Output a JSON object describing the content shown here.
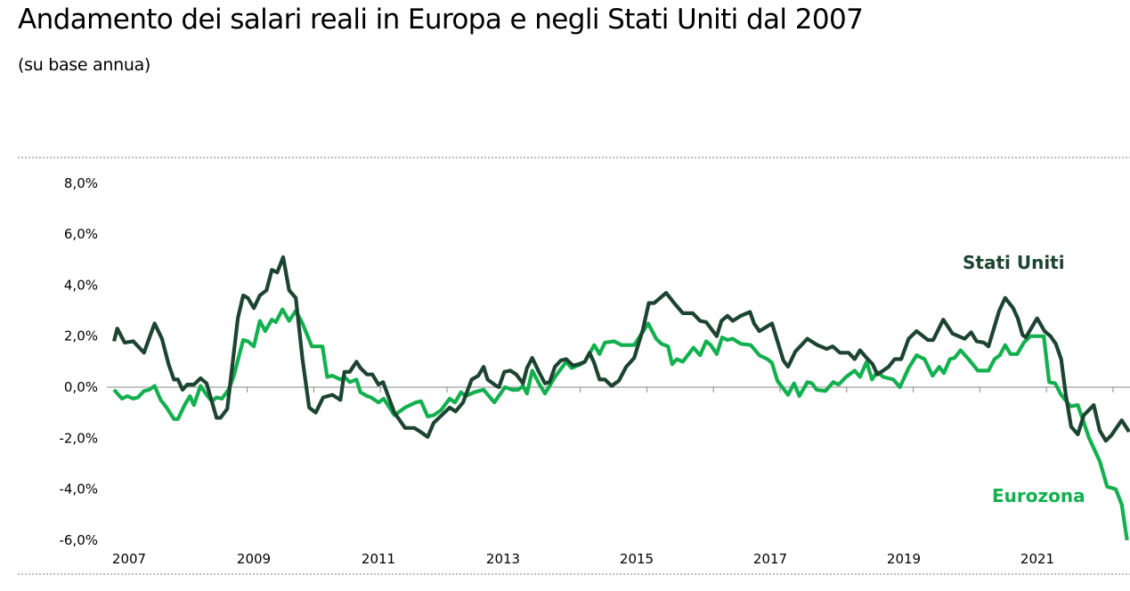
{
  "title": "Andamento dei salari reali in Europa e negli Stati Uniti dal 2007",
  "subtitle": "(su base annua)",
  "chart_data": {
    "type": "line",
    "title": "Andamento dei salari reali in Europa e negli Stati Uniti dal 2007",
    "subtitle": "(su base annua)",
    "xlabel": "",
    "ylabel": "",
    "xlim": [
      2007.0,
      2022.24
    ],
    "ylim": [
      -6,
      8
    ],
    "y_ticks": [
      "8,0%",
      "6,0%",
      "4,0%",
      "2,0%",
      "0,0%",
      "-2,0%",
      "-4,0%",
      "-6,0%"
    ],
    "y_tick_values": [
      8,
      6,
      4,
      2,
      0,
      -2,
      -4,
      -6
    ],
    "x_ticks": [
      "2007",
      "2009",
      "2011",
      "2013",
      "2015",
      "2017",
      "2019",
      "2021"
    ],
    "grid": false,
    "legend": "inline labels at line ends",
    "series": [
      {
        "name": "Stati Uniti",
        "color": "#1d4431",
        "x": [
          2007.0,
          2007.05,
          2007.16,
          2007.29,
          2007.45,
          2007.61,
          2007.72,
          2007.82,
          2007.9,
          2007.96,
          2008.03,
          2008.1,
          2008.2,
          2008.3,
          2008.39,
          2008.54,
          2008.6,
          2008.7,
          2008.86,
          2008.94,
          2009.01,
          2009.1,
          2009.19,
          2009.29,
          2009.37,
          2009.45,
          2009.54,
          2009.63,
          2009.73,
          2009.83,
          2009.93,
          2010.03,
          2010.14,
          2010.28,
          2010.4,
          2010.46,
          2010.54,
          2010.64,
          2010.7,
          2010.8,
          2010.88,
          2010.97,
          2011.04,
          2011.21,
          2011.37,
          2011.51,
          2011.6,
          2011.71,
          2011.8,
          2011.88,
          2012.04,
          2012.13,
          2012.24,
          2012.37,
          2012.47,
          2012.55,
          2012.61,
          2012.74,
          2012.78,
          2012.86,
          2012.95,
          2013.04,
          2013.14,
          2013.2,
          2013.28,
          2013.38,
          2013.47,
          2013.54,
          2013.62,
          2013.71,
          2013.79,
          2013.89,
          2013.98,
          2014.07,
          2014.14,
          2014.21,
          2014.29,
          2014.37,
          2014.47,
          2014.58,
          2014.69,
          2014.81,
          2014.94,
          2015.03,
          2015.11,
          2015.29,
          2015.41,
          2015.54,
          2015.69,
          2015.8,
          2015.89,
          2016.05,
          2016.12,
          2016.21,
          2016.29,
          2016.41,
          2016.55,
          2016.61,
          2016.69,
          2016.88,
          2017.05,
          2017.12,
          2017.23,
          2017.41,
          2017.56,
          2017.7,
          2017.79,
          2017.9,
          2018.03,
          2018.12,
          2018.2,
          2018.3,
          2018.39,
          2018.46,
          2018.52,
          2018.63,
          2018.72,
          2018.82,
          2018.93,
          2019.05,
          2019.22,
          2019.3,
          2019.45,
          2019.59,
          2019.77,
          2019.87,
          2019.95,
          2020.06,
          2020.13,
          2020.29,
          2020.38,
          2020.5,
          2020.57,
          2020.64,
          2020.69,
          2020.86,
          2020.97,
          2021.06,
          2021.14,
          2021.22,
          2021.29,
          2021.37,
          2021.47,
          2021.56,
          2021.71,
          2021.8,
          2021.89,
          2021.97,
          2022.13,
          2022.24
        ],
        "y": [
          1.8,
          2.3,
          1.75,
          1.8,
          1.35,
          2.5,
          1.9,
          0.9,
          0.3,
          0.3,
          -0.1,
          0.1,
          0.1,
          0.35,
          0.15,
          -1.2,
          -1.2,
          -0.85,
          2.7,
          3.6,
          3.5,
          3.1,
          3.6,
          3.8,
          4.6,
          4.5,
          5.1,
          3.8,
          3.5,
          1.1,
          -0.8,
          -1.0,
          -0.4,
          -0.3,
          -0.5,
          0.6,
          0.6,
          1.0,
          0.75,
          0.5,
          0.5,
          0.1,
          0.2,
          -1.0,
          -1.6,
          -1.6,
          -1.75,
          -1.95,
          -1.4,
          -1.2,
          -0.8,
          -0.95,
          -0.6,
          0.3,
          0.45,
          0.8,
          0.3,
          0.05,
          0.0,
          0.6,
          0.65,
          0.5,
          0.15,
          0.75,
          1.15,
          0.6,
          0.15,
          0.2,
          0.8,
          1.05,
          1.1,
          0.85,
          0.9,
          1.0,
          1.35,
          0.95,
          0.3,
          0.3,
          0.05,
          0.25,
          0.8,
          1.15,
          2.25,
          3.3,
          3.3,
          3.7,
          3.3,
          2.9,
          2.9,
          2.6,
          2.55,
          2.0,
          2.6,
          2.8,
          2.6,
          2.8,
          2.95,
          2.5,
          2.2,
          2.5,
          1.05,
          0.8,
          1.4,
          1.9,
          1.65,
          1.5,
          1.6,
          1.35,
          1.35,
          1.1,
          1.45,
          1.15,
          0.9,
          0.5,
          0.6,
          0.8,
          1.1,
          1.1,
          1.9,
          2.2,
          1.85,
          1.85,
          2.65,
          2.1,
          1.9,
          2.15,
          1.8,
          1.75,
          1.6,
          3.0,
          3.5,
          3.1,
          2.7,
          2.05,
          1.95,
          2.7,
          2.2,
          2.0,
          1.7,
          1.1,
          -0.3,
          -1.55,
          -1.85,
          -1.1,
          -0.7,
          -1.7,
          -2.1,
          -1.9,
          -1.3,
          -1.75
        ]
      },
      {
        "name": "Eurozona",
        "color": "#12b04e",
        "x": [
          2007.0,
          2007.12,
          2007.2,
          2007.29,
          2007.36,
          2007.45,
          2007.53,
          2007.61,
          2007.7,
          2007.79,
          2007.9,
          2007.96,
          2008.06,
          2008.14,
          2008.2,
          2008.3,
          2008.39,
          2008.47,
          2008.54,
          2008.62,
          2008.72,
          2008.8,
          2008.94,
          2009.01,
          2009.1,
          2009.19,
          2009.27,
          2009.37,
          2009.43,
          2009.53,
          2009.63,
          2009.73,
          2009.83,
          2009.97,
          2010.13,
          2010.2,
          2010.28,
          2010.4,
          2010.46,
          2010.54,
          2010.64,
          2010.7,
          2010.8,
          2010.86,
          2010.97,
          2011.05,
          2011.21,
          2011.37,
          2011.53,
          2011.61,
          2011.71,
          2011.8,
          2011.91,
          2012.04,
          2012.12,
          2012.21,
          2012.28,
          2012.41,
          2012.55,
          2012.71,
          2012.87,
          2012.98,
          2013.07,
          2013.14,
          2013.2,
          2013.28,
          2013.38,
          2013.47,
          2013.62,
          2013.79,
          2013.87,
          2014.01,
          2014.07,
          2014.21,
          2014.29,
          2014.37,
          2014.51,
          2014.62,
          2014.81,
          2014.91,
          2015.02,
          2015.14,
          2015.22,
          2015.32,
          2015.38,
          2015.45,
          2015.54,
          2015.7,
          2015.8,
          2015.89,
          2015.96,
          2016.05,
          2016.13,
          2016.21,
          2016.29,
          2016.41,
          2016.56,
          2016.69,
          2016.81,
          2016.88,
          2016.96,
          2017.12,
          2017.21,
          2017.29,
          2017.41,
          2017.48,
          2017.55,
          2017.68,
          2017.8,
          2017.88,
          2017.99,
          2018.12,
          2018.2,
          2018.3,
          2018.38,
          2018.46,
          2018.55,
          2018.7,
          2018.8,
          2018.93,
          2019.05,
          2019.17,
          2019.29,
          2019.39,
          2019.46,
          2019.55,
          2019.62,
          2019.71,
          2019.83,
          2019.97,
          2020.13,
          2020.22,
          2020.3,
          2020.38,
          2020.46,
          2020.56,
          2020.66,
          2020.76,
          2020.96,
          2021.04,
          2021.13,
          2021.22,
          2021.36,
          2021.47,
          2021.64,
          2021.8,
          2021.91,
          2022.04,
          2022.13,
          2022.21
        ],
        "y": [
          -0.1,
          -0.45,
          -0.35,
          -0.45,
          -0.4,
          -0.15,
          -0.1,
          0.05,
          -0.5,
          -0.8,
          -1.25,
          -1.25,
          -0.7,
          -0.35,
          -0.7,
          0.05,
          -0.3,
          -0.55,
          -0.4,
          -0.45,
          -0.1,
          0.45,
          1.85,
          1.8,
          1.6,
          2.6,
          2.2,
          2.65,
          2.55,
          3.05,
          2.6,
          3.0,
          2.5,
          1.6,
          1.6,
          0.4,
          0.45,
          0.3,
          0.4,
          0.2,
          0.3,
          -0.2,
          -0.35,
          -0.4,
          -0.6,
          -0.45,
          -1.1,
          -0.8,
          -0.6,
          -0.55,
          -1.15,
          -1.1,
          -0.9,
          -0.45,
          -0.6,
          -0.2,
          -0.35,
          -0.2,
          -0.1,
          -0.6,
          0.0,
          -0.1,
          -0.1,
          0.05,
          -0.25,
          0.65,
          0.15,
          -0.25,
          0.4,
          1.0,
          0.75,
          0.9,
          1.0,
          1.65,
          1.3,
          1.75,
          1.8,
          1.65,
          1.65,
          2.05,
          2.5,
          1.9,
          1.7,
          1.6,
          0.9,
          1.1,
          1.0,
          1.55,
          1.25,
          1.8,
          1.65,
          1.3,
          1.95,
          1.85,
          1.9,
          1.7,
          1.65,
          1.25,
          1.1,
          0.95,
          0.25,
          -0.3,
          0.15,
          -0.35,
          0.2,
          0.15,
          -0.1,
          -0.15,
          0.2,
          0.1,
          0.4,
          0.65,
          0.4,
          1.0,
          0.3,
          0.6,
          0.4,
          0.3,
          0.0,
          0.75,
          1.25,
          1.1,
          0.45,
          0.8,
          0.55,
          1.1,
          1.15,
          1.45,
          1.1,
          0.65,
          0.65,
          1.1,
          1.25,
          1.65,
          1.3,
          1.3,
          1.75,
          2.0,
          2.0,
          0.2,
          0.15,
          -0.3,
          -0.75,
          -0.7,
          -2.0,
          -2.9,
          -3.9,
          -4.0,
          -4.6,
          -6.0
        ]
      }
    ]
  }
}
